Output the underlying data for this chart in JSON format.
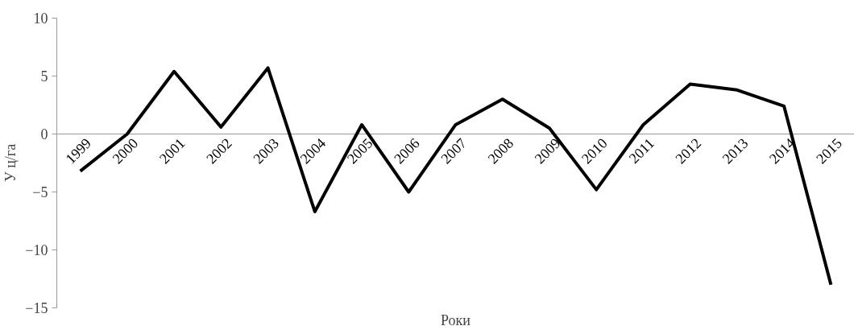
{
  "chart_data": {
    "type": "line",
    "xlabel": "Роки",
    "ylabel": "У ц/га",
    "categories": [
      "1999",
      "2000",
      "2001",
      "2002",
      "2003",
      "2004",
      "2005",
      "2006",
      "2007",
      "2008",
      "2009",
      "2010",
      "2011",
      "2012",
      "2013",
      "2014",
      "2015"
    ],
    "series": [
      {
        "color": "#000000",
        "values": [
          -3.2,
          0,
          5.4,
          0.6,
          5.7,
          -6.7,
          0.8,
          -5.0,
          0.8,
          3.0,
          0.5,
          -4.8,
          0.8,
          4.3,
          3.8,
          2.4,
          -13.0
        ]
      }
    ],
    "ylim": [
      -15,
      10
    ],
    "yticks": [
      -15,
      -10,
      -5,
      0,
      5,
      10
    ],
    "grid": false,
    "marker": "none",
    "line_style": "solid"
  }
}
